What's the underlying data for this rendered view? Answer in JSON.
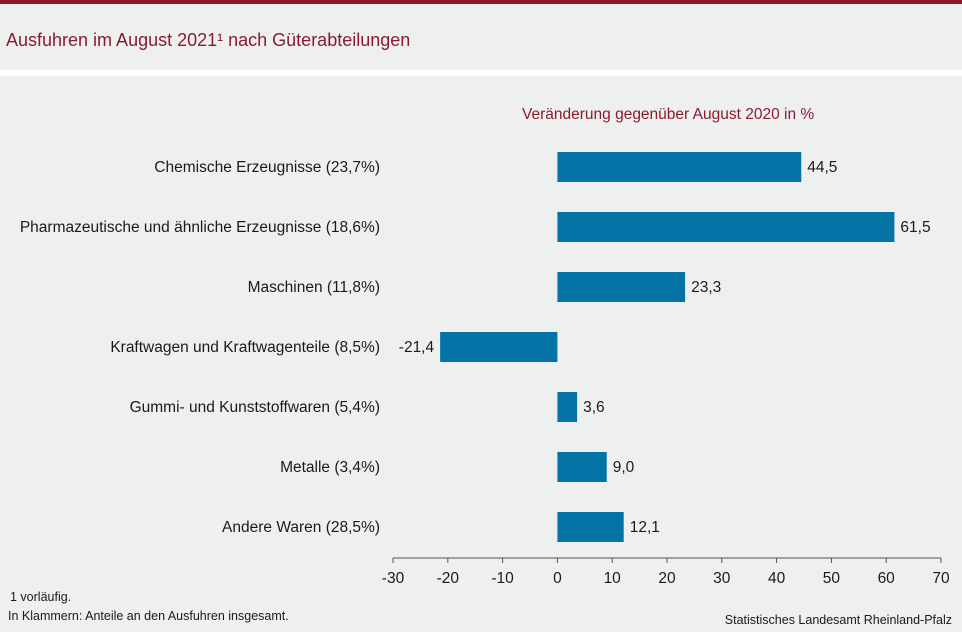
{
  "header": {
    "title": "Ausfuhren im August 2021¹ nach Güterabteilungen"
  },
  "footer": {
    "footnote_1": "1 vorläufig.",
    "footnote_2": "In Klammern: Anteile an den Ausfuhren insgesamt.",
    "source": "Statistisches Landesamt Rheinland-Pfalz"
  },
  "colors": {
    "accent": "#8b1a2f",
    "bar": "#0474a6",
    "background": "#eef0ef"
  },
  "chart_data": {
    "type": "bar",
    "orientation": "horizontal",
    "title": "Ausfuhren im August 2021¹ nach Güterabteilungen",
    "subtitle": "Veränderung gegenüber August 2020 in %",
    "categories": [
      "Chemische Erzeugnisse (23,7%)",
      "Pharmazeutische und ähnliche Erzeugnisse (18,6%)",
      "Maschinen (11,8%)",
      "Kraftwagen und Kraftwagenteile (8,5%)",
      "Gummi- und Kunststoffwaren (5,4%)",
      "Metalle (3,4%)",
      "Andere Waren (28,5%)"
    ],
    "values": [
      44.5,
      61.5,
      23.3,
      -21.4,
      3.6,
      9.0,
      12.1
    ],
    "value_labels": [
      "44,5",
      "61,5",
      "23,3",
      "-21,4",
      "3,6",
      "9,0",
      "12,1"
    ],
    "xlim": [
      -30,
      70
    ],
    "ticks": [
      -30,
      -20,
      -10,
      0,
      10,
      20,
      30,
      40,
      50,
      60,
      70
    ],
    "xlabel": "",
    "ylabel": "",
    "grid": false,
    "legend": "none"
  }
}
